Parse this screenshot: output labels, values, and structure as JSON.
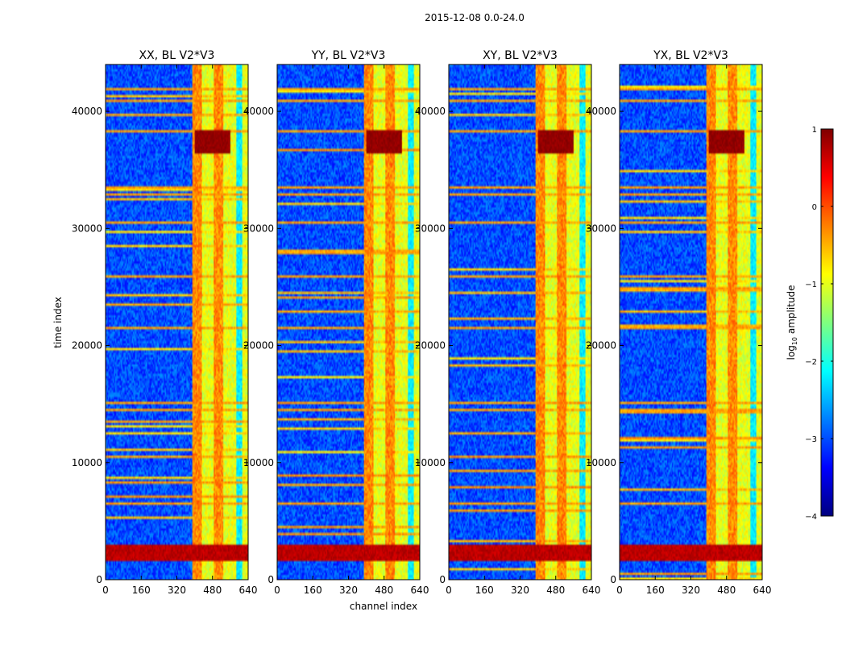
{
  "chart_data": {
    "type": "heatmap",
    "suptitle": "2015-12-08 0.0-24.0",
    "xlabel": "channel index",
    "ylabel": "time index",
    "xlim": [
      0,
      640
    ],
    "ylim": [
      0,
      44000
    ],
    "xticks": [
      0,
      160,
      320,
      480,
      640
    ],
    "yticks": [
      0,
      10000,
      20000,
      30000,
      40000
    ],
    "panels": [
      {
        "title": "XX, BL V2*V3",
        "polarization": "XX"
      },
      {
        "title": "YY, BL V2*V3",
        "polarization": "YY"
      },
      {
        "title": "XY, BL V2*V3",
        "polarization": "XY"
      },
      {
        "title": "YX, BL V2*V3",
        "polarization": "YX"
      }
    ],
    "colorbar": {
      "label_prefix": "log",
      "label_subscript": "10",
      "label_suffix": " amplitude",
      "range": [
        -4,
        1
      ],
      "ticks": [
        1,
        0,
        -1,
        -2,
        -3,
        -4
      ],
      "tick_labels": [
        "1",
        "0",
        "−1",
        "−2",
        "−3",
        "−4"
      ],
      "colormap": "jet",
      "jet_stops": [
        "#00007f",
        "#0000ff",
        "#007fff",
        "#00ffff",
        "#7fff7f",
        "#ffff00",
        "#ff7f00",
        "#ff0000",
        "#7f0000"
      ]
    },
    "structure": {
      "bright_channel_band": [
        400,
        640
      ],
      "strong_channels": [
        410,
        510
      ],
      "saturated_time_rows": [
        [
          1500,
          3000
        ],
        [
          36500,
          38500
        ]
      ],
      "rfi_time_rows": [
        6400,
        14500,
        15000,
        21500,
        26000,
        30500,
        33000,
        33500,
        38400,
        41000,
        42000
      ],
      "background_log_amplitude": -3.0,
      "band_log_amplitude": -1.0,
      "saturated_log_amplitude": 0.9
    }
  }
}
